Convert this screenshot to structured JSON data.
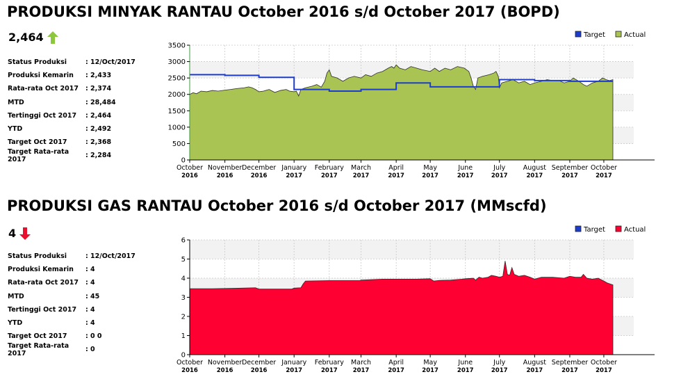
{
  "oil": {
    "title": "PRODUKSI MINYAK RANTAU October 2016 s/d October 2017 (BOPD)",
    "headline_value": "2,464",
    "trend": "up",
    "trend_color": "#8dc63f",
    "stats": [
      {
        "label": "Status Produksi",
        "value": "12/Oct/2017"
      },
      {
        "label": "Produksi Kemarin",
        "value": "2,433"
      },
      {
        "label": "Rata-rata Oct 2017",
        "value": "2,374"
      },
      {
        "label": "MTD",
        "value": "28,484"
      },
      {
        "label": "Tertinggi Oct 2017",
        "value": "2,464"
      },
      {
        "label": "YTD",
        "value": "2,492"
      },
      {
        "label": "Target Oct 2017",
        "value": "2,368"
      },
      {
        "label": "Target Rata-rata 2017",
        "value": "2,284"
      }
    ]
  },
  "gas": {
    "title": "PRODUKSI GAS RANTAU October 2016 s/d October 2017 (MMscfd)",
    "headline_value": "4",
    "trend": "down",
    "trend_color": "#e8102e",
    "stats": [
      {
        "label": "Status Produksi",
        "value": "12/Oct/2017"
      },
      {
        "label": "Produksi Kemarin",
        "value": "4"
      },
      {
        "label": "Rata-rata Oct 2017",
        "value": "4"
      },
      {
        "label": "MTD",
        "value": "45"
      },
      {
        "label": "Tertinggi Oct 2017",
        "value": "4"
      },
      {
        "label": "YTD",
        "value": "4"
      },
      {
        "label": "Target Oct 2017",
        "value": "0 0"
      },
      {
        "label": "Target Rata-rata 2017",
        "value": "0"
      }
    ]
  },
  "chart_data": [
    {
      "type": "area",
      "ylim": [
        0,
        3500
      ],
      "yticks": [
        0,
        500,
        1000,
        1500,
        2000,
        2500,
        3000,
        3500
      ],
      "xlim": [
        0,
        373
      ],
      "grid": true,
      "legend_placement": "top-right",
      "x_tick_labels": [
        {
          "x": 0,
          "m": "October",
          "y": "2016"
        },
        {
          "x": 31,
          "m": "November",
          "y": "2016"
        },
        {
          "x": 61,
          "m": "December",
          "y": "2016"
        },
        {
          "x": 92,
          "m": "January",
          "y": "2017"
        },
        {
          "x": 123,
          "m": "February",
          "y": "2017"
        },
        {
          "x": 151,
          "m": "March",
          "y": "2017"
        },
        {
          "x": 182,
          "m": "April",
          "y": "2017"
        },
        {
          "x": 212,
          "m": "May",
          "y": "2017"
        },
        {
          "x": 243,
          "m": "June",
          "y": "2017"
        },
        {
          "x": 273,
          "m": "July",
          "y": "2017"
        },
        {
          "x": 304,
          "m": "August",
          "y": "2017"
        },
        {
          "x": 335,
          "m": "September",
          "y": "2017"
        },
        {
          "x": 365,
          "m": "October",
          "y": "2017"
        }
      ],
      "series": [
        {
          "name": "Target",
          "kind": "step-line",
          "color": "#1b3ccc",
          "points": [
            [
              0,
              2600
            ],
            [
              31,
              2580
            ],
            [
              61,
              2520
            ],
            [
              92,
              2150
            ],
            [
              123,
              2100
            ],
            [
              151,
              2150
            ],
            [
              182,
              2350
            ],
            [
              212,
              2230
            ],
            [
              273,
              2450
            ],
            [
              304,
              2420
            ],
            [
              335,
              2400
            ],
            [
              373,
              2400
            ]
          ]
        },
        {
          "name": "Actual",
          "kind": "area",
          "color": "#a9c452",
          "points": [
            [
              0,
              2000
            ],
            [
              3,
              2050
            ],
            [
              6,
              2020
            ],
            [
              10,
              2100
            ],
            [
              15,
              2080
            ],
            [
              20,
              2120
            ],
            [
              25,
              2100
            ],
            [
              31,
              2130
            ],
            [
              36,
              2150
            ],
            [
              42,
              2180
            ],
            [
              48,
              2200
            ],
            [
              52,
              2230
            ],
            [
              55,
              2200
            ],
            [
              58,
              2150
            ],
            [
              61,
              2080
            ],
            [
              65,
              2100
            ],
            [
              70,
              2150
            ],
            [
              75,
              2060
            ],
            [
              80,
              2120
            ],
            [
              85,
              2150
            ],
            [
              88,
              2100
            ],
            [
              92,
              2080
            ],
            [
              94,
              2100
            ],
            [
              96,
              1950
            ],
            [
              98,
              2150
            ],
            [
              102,
              2200
            ],
            [
              108,
              2250
            ],
            [
              112,
              2300
            ],
            [
              116,
              2220
            ],
            [
              119,
              2400
            ],
            [
              121,
              2650
            ],
            [
              123,
              2750
            ],
            [
              125,
              2550
            ],
            [
              130,
              2500
            ],
            [
              135,
              2400
            ],
            [
              140,
              2500
            ],
            [
              145,
              2550
            ],
            [
              151,
              2500
            ],
            [
              155,
              2600
            ],
            [
              160,
              2550
            ],
            [
              165,
              2650
            ],
            [
              170,
              2700
            ],
            [
              175,
              2800
            ],
            [
              178,
              2850
            ],
            [
              180,
              2800
            ],
            [
              182,
              2900
            ],
            [
              185,
              2800
            ],
            [
              190,
              2750
            ],
            [
              195,
              2850
            ],
            [
              200,
              2800
            ],
            [
              205,
              2750
            ],
            [
              212,
              2700
            ],
            [
              216,
              2800
            ],
            [
              220,
              2700
            ],
            [
              225,
              2800
            ],
            [
              230,
              2750
            ],
            [
              236,
              2850
            ],
            [
              242,
              2800
            ],
            [
              246,
              2700
            ],
            [
              248,
              2500
            ],
            [
              250,
              2250
            ],
            [
              252,
              2150
            ],
            [
              254,
              2500
            ],
            [
              258,
              2550
            ],
            [
              264,
              2600
            ],
            [
              268,
              2650
            ],
            [
              270,
              2700
            ],
            [
              272,
              2550
            ],
            [
              273,
              2200
            ],
            [
              275,
              2350
            ],
            [
              280,
              2400
            ],
            [
              285,
              2450
            ],
            [
              290,
              2350
            ],
            [
              295,
              2400
            ],
            [
              300,
              2300
            ],
            [
              304,
              2350
            ],
            [
              310,
              2400
            ],
            [
              315,
              2450
            ],
            [
              320,
              2420
            ],
            [
              325,
              2430
            ],
            [
              330,
              2350
            ],
            [
              335,
              2400
            ],
            [
              338,
              2500
            ],
            [
              343,
              2400
            ],
            [
              347,
              2300
            ],
            [
              350,
              2250
            ],
            [
              355,
              2350
            ],
            [
              360,
              2400
            ],
            [
              364,
              2500
            ],
            [
              367,
              2450
            ],
            [
              370,
              2420
            ],
            [
              373,
              2450
            ]
          ]
        }
      ]
    },
    {
      "type": "area",
      "ylim": [
        0,
        6
      ],
      "yticks": [
        0,
        1,
        2,
        3,
        4,
        5,
        6
      ],
      "xlim": [
        0,
        373
      ],
      "grid": true,
      "legend_placement": "top-right",
      "x_tick_labels": [
        {
          "x": 0,
          "m": "October",
          "y": "2016"
        },
        {
          "x": 31,
          "m": "November",
          "y": "2016"
        },
        {
          "x": 61,
          "m": "December",
          "y": "2016"
        },
        {
          "x": 92,
          "m": "January",
          "y": "2017"
        },
        {
          "x": 123,
          "m": "February",
          "y": "2017"
        },
        {
          "x": 151,
          "m": "March",
          "y": "2017"
        },
        {
          "x": 182,
          "m": "April",
          "y": "2017"
        },
        {
          "x": 212,
          "m": "May",
          "y": "2017"
        },
        {
          "x": 243,
          "m": "June",
          "y": "2017"
        },
        {
          "x": 273,
          "m": "July",
          "y": "2017"
        },
        {
          "x": 304,
          "m": "August",
          "y": "2017"
        },
        {
          "x": 335,
          "m": "September",
          "y": "2017"
        },
        {
          "x": 365,
          "m": "October",
          "y": "2017"
        }
      ],
      "series": [
        {
          "name": "Target",
          "kind": "step-line",
          "color": "#1b3ccc",
          "points": []
        },
        {
          "name": "Actual",
          "kind": "area",
          "color": "#ff0033",
          "points": [
            [
              0,
              3.45
            ],
            [
              20,
              3.45
            ],
            [
              40,
              3.47
            ],
            [
              58,
              3.5
            ],
            [
              61,
              3.43
            ],
            [
              90,
              3.43
            ],
            [
              92,
              3.48
            ],
            [
              98,
              3.5
            ],
            [
              100,
              3.7
            ],
            [
              102,
              3.85
            ],
            [
              123,
              3.87
            ],
            [
              150,
              3.87
            ],
            [
              151,
              3.9
            ],
            [
              160,
              3.92
            ],
            [
              170,
              3.95
            ],
            [
              190,
              3.95
            ],
            [
              200,
              3.95
            ],
            [
              212,
              3.97
            ],
            [
              215,
              3.85
            ],
            [
              220,
              3.88
            ],
            [
              230,
              3.9
            ],
            [
              240,
              3.95
            ],
            [
              243,
              3.97
            ],
            [
              250,
              4.0
            ],
            [
              252,
              3.9
            ],
            [
              255,
              4.05
            ],
            [
              258,
              4.0
            ],
            [
              263,
              4.05
            ],
            [
              266,
              4.15
            ],
            [
              270,
              4.1
            ],
            [
              273,
              4.05
            ],
            [
              276,
              4.1
            ],
            [
              278,
              4.9
            ],
            [
              280,
              4.2
            ],
            [
              282,
              4.15
            ],
            [
              284,
              4.55
            ],
            [
              286,
              4.2
            ],
            [
              290,
              4.1
            ],
            [
              295,
              4.15
            ],
            [
              300,
              4.05
            ],
            [
              304,
              3.95
            ],
            [
              310,
              4.05
            ],
            [
              320,
              4.05
            ],
            [
              330,
              4.0
            ],
            [
              335,
              4.1
            ],
            [
              340,
              4.05
            ],
            [
              345,
              4.05
            ],
            [
              347,
              4.2
            ],
            [
              350,
              4.0
            ],
            [
              355,
              3.95
            ],
            [
              360,
              4.0
            ],
            [
              365,
              3.85
            ],
            [
              368,
              3.75
            ],
            [
              373,
              3.65
            ]
          ]
        }
      ]
    }
  ]
}
